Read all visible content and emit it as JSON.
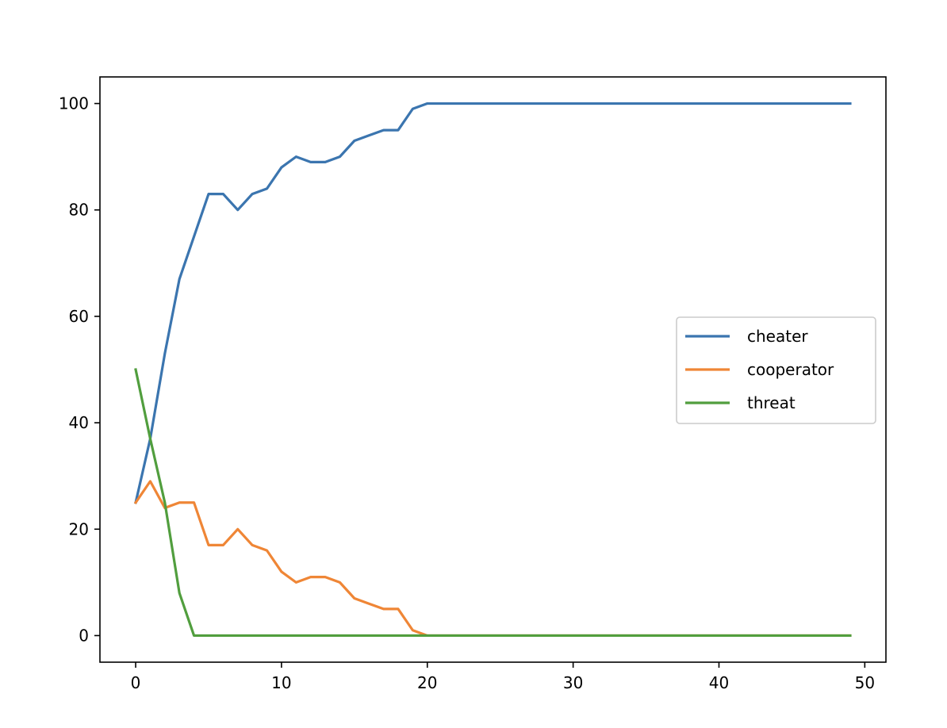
{
  "chart_data": {
    "type": "line",
    "title": "",
    "xlabel": "",
    "ylabel": "",
    "xlim": [
      -2.45,
      51.45
    ],
    "ylim": [
      -5,
      105
    ],
    "xticks": [
      0,
      10,
      20,
      30,
      40,
      50
    ],
    "yticks": [
      0,
      20,
      40,
      60,
      80,
      100
    ],
    "xtick_labels": [
      "0",
      "10",
      "20",
      "30",
      "40",
      "50"
    ],
    "ytick_labels": [
      "0",
      "20",
      "40",
      "60",
      "80",
      "100"
    ],
    "grid": false,
    "legend_position": "center-right",
    "x": [
      0,
      1,
      2,
      3,
      4,
      5,
      6,
      7,
      8,
      9,
      10,
      11,
      12,
      13,
      14,
      15,
      16,
      17,
      18,
      19,
      20,
      21,
      22,
      23,
      24,
      25,
      26,
      27,
      28,
      29,
      30,
      31,
      32,
      33,
      34,
      35,
      36,
      37,
      38,
      39,
      40,
      41,
      42,
      43,
      44,
      45,
      46,
      47,
      48,
      49
    ],
    "series": [
      {
        "name": "cheater",
        "color": "#3b75af",
        "values": [
          25,
          37,
          53,
          67,
          75,
          83,
          83,
          80,
          83,
          84,
          88,
          90,
          89,
          89,
          90,
          93,
          94,
          95,
          95,
          99,
          100,
          100,
          100,
          100,
          100,
          100,
          100,
          100,
          100,
          100,
          100,
          100,
          100,
          100,
          100,
          100,
          100,
          100,
          100,
          100,
          100,
          100,
          100,
          100,
          100,
          100,
          100,
          100,
          100,
          100
        ]
      },
      {
        "name": "cooperator",
        "color": "#ef8636",
        "values": [
          25,
          29,
          24,
          25,
          25,
          17,
          17,
          20,
          17,
          16,
          12,
          10,
          11,
          11,
          10,
          7,
          6,
          5,
          5,
          1,
          0,
          0,
          0,
          0,
          0,
          0,
          0,
          0,
          0,
          0,
          0,
          0,
          0,
          0,
          0,
          0,
          0,
          0,
          0,
          0,
          0,
          0,
          0,
          0,
          0,
          0,
          0,
          0,
          0,
          0
        ]
      },
      {
        "name": "threat",
        "color": "#519e3e",
        "values": [
          50,
          37,
          25,
          8,
          0,
          0,
          0,
          0,
          0,
          0,
          0,
          0,
          0,
          0,
          0,
          0,
          0,
          0,
          0,
          0,
          0,
          0,
          0,
          0,
          0,
          0,
          0,
          0,
          0,
          0,
          0,
          0,
          0,
          0,
          0,
          0,
          0,
          0,
          0,
          0,
          0,
          0,
          0,
          0,
          0,
          0,
          0,
          0,
          0,
          0
        ]
      }
    ]
  }
}
